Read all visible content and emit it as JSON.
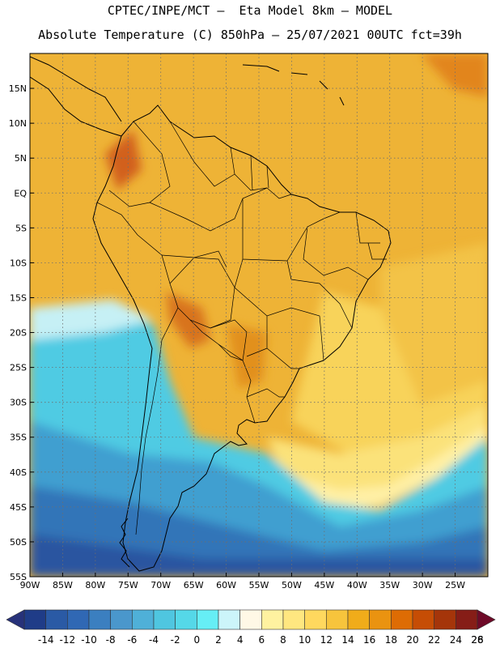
{
  "title_line1": "CPTEC/INPE/MCT –  Eta Model 8km – MODEL",
  "title_line2": "Absolute Temperature (C) 850hPa – 25/07/2021 00UTC fct=39h",
  "map": {
    "lon_range": [
      -90,
      -20
    ],
    "lat_range": [
      -55,
      20
    ],
    "lon_ticks": [
      {
        "value": -90,
        "label": "90W"
      },
      {
        "value": -85,
        "label": "85W"
      },
      {
        "value": -80,
        "label": "80W"
      },
      {
        "value": -75,
        "label": "75W"
      },
      {
        "value": -70,
        "label": "70W"
      },
      {
        "value": -65,
        "label": "65W"
      },
      {
        "value": -60,
        "label": "60W"
      },
      {
        "value": -55,
        "label": "55W"
      },
      {
        "value": -50,
        "label": "50W"
      },
      {
        "value": -45,
        "label": "45W"
      },
      {
        "value": -40,
        "label": "40W"
      },
      {
        "value": -35,
        "label": "35W"
      },
      {
        "value": -30,
        "label": "30W"
      },
      {
        "value": -25,
        "label": "25W"
      }
    ],
    "lat_ticks": [
      {
        "value": 15,
        "label": "15N"
      },
      {
        "value": 10,
        "label": "10N"
      },
      {
        "value": 5,
        "label": "5N"
      },
      {
        "value": 0,
        "label": "EQ"
      },
      {
        "value": -5,
        "label": "5S"
      },
      {
        "value": -10,
        "label": "10S"
      },
      {
        "value": -15,
        "label": "15S"
      },
      {
        "value": -20,
        "label": "20S"
      },
      {
        "value": -25,
        "label": "25S"
      },
      {
        "value": -30,
        "label": "30S"
      },
      {
        "value": -35,
        "label": "35S"
      },
      {
        "value": -40,
        "label": "40S"
      },
      {
        "value": -45,
        "label": "45S"
      },
      {
        "value": -50,
        "label": "50S"
      },
      {
        "value": -55,
        "label": "55S"
      }
    ],
    "grid": true
  },
  "colorbar": {
    "labels": [
      "-14",
      "-12",
      "-10",
      "-8",
      "-6",
      "-4",
      "-2",
      "0",
      "2",
      "4",
      "6",
      "8",
      "10",
      "12",
      "14",
      "16",
      "18",
      "20",
      "22",
      "24",
      "26",
      "28"
    ],
    "colors": [
      "#1f3c88",
      "#2a5aa5",
      "#3068b4",
      "#3b7fc0",
      "#4a97cc",
      "#4fb0d8",
      "#4fc6e0",
      "#55d8e8",
      "#66eef5",
      "#ccf5fa",
      "#fff8e6",
      "#fff2a0",
      "#ffe780",
      "#ffd85e",
      "#f7c43c",
      "#f0ac1a",
      "#ea9310",
      "#de6c04",
      "#c64d05",
      "#a5350a",
      "#861d17"
    ],
    "low_color": "#27327a",
    "high_color": "#6e0a28"
  }
}
